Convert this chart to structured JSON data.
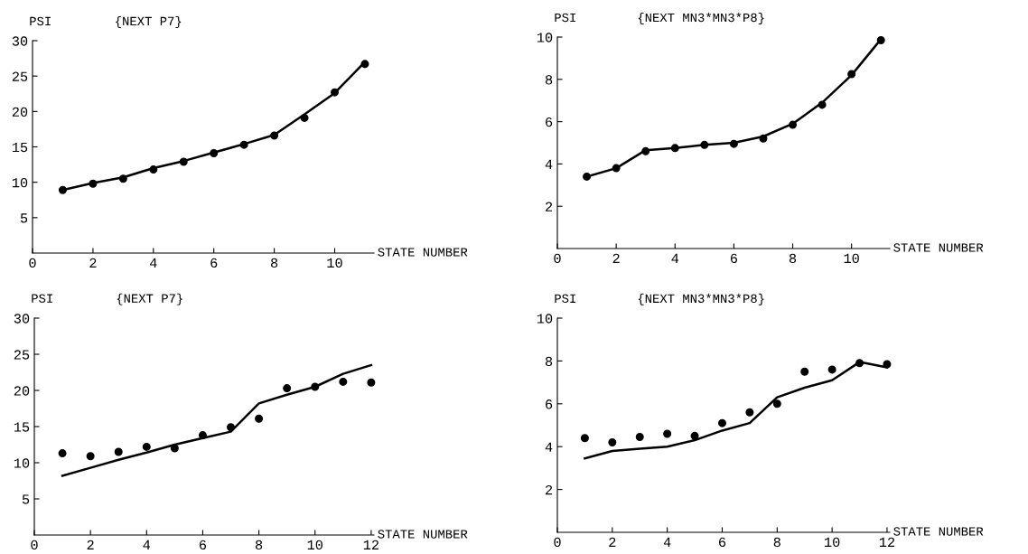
{
  "chart_data": [
    {
      "type": "scatter",
      "title": "{NEXT P7}",
      "ylabel": "PSI",
      "xlabel": "STATE NUMBER",
      "xlim": [
        0,
        11.3
      ],
      "ylim": [
        0,
        30
      ],
      "xticks": [
        0,
        2,
        4,
        6,
        8,
        10
      ],
      "yticks": [
        5,
        10,
        15,
        20,
        25,
        30
      ],
      "marker": "circle",
      "grid": false,
      "legend": false,
      "x": [
        1,
        2,
        3,
        4,
        5,
        6,
        7,
        8,
        9,
        10,
        11
      ],
      "series": [
        {
          "color": "#000000",
          "values": [
            8.9,
            9.8,
            10.5,
            11.8,
            12.9,
            14.1,
            15.3,
            16.6,
            19.1,
            22.7,
            26.7
          ]
        },
        {
          "type": "line",
          "color": "#000000",
          "marker": "none",
          "values": [
            8.9,
            9.9,
            10.7,
            12.0,
            13.0,
            14.2,
            15.4,
            16.7,
            19.6,
            22.6,
            27.0
          ]
        }
      ]
    },
    {
      "type": "scatter",
      "title": "{NEXT MN3*MN3*P8}",
      "ylabel": "PSI",
      "xlabel": "STATE NUMBER",
      "xlim": [
        0,
        11.3
      ],
      "ylim": [
        0,
        10
      ],
      "xticks": [
        0,
        2,
        4,
        6,
        8,
        10
      ],
      "yticks": [
        2,
        4,
        6,
        8,
        10
      ],
      "marker": "circle",
      "grid": false,
      "legend": false,
      "x": [
        1,
        2,
        3,
        4,
        5,
        6,
        7,
        8,
        9,
        10,
        11
      ],
      "series": [
        {
          "color": "#000000",
          "values": [
            3.4,
            3.8,
            4.6,
            4.75,
            4.9,
            4.95,
            5.2,
            5.85,
            6.8,
            8.25,
            9.85
          ]
        },
        {
          "type": "line",
          "color": "#000000",
          "marker": "none",
          "values": [
            3.4,
            3.8,
            4.65,
            4.75,
            4.9,
            5.0,
            5.3,
            5.9,
            6.9,
            8.2,
            9.9
          ]
        }
      ]
    },
    {
      "type": "scatter",
      "title": "{NEXT P7}",
      "ylabel": "PSI",
      "xlabel": "STATE NUMBER",
      "xlim": [
        0,
        12.1
      ],
      "ylim": [
        0,
        30
      ],
      "xticks": [
        0,
        2,
        4,
        6,
        8,
        10,
        12
      ],
      "yticks": [
        5,
        10,
        15,
        20,
        25,
        30
      ],
      "marker": "circle",
      "grid": false,
      "legend": false,
      "x": [
        1,
        2,
        3,
        4,
        5,
        6,
        7,
        8,
        9,
        10,
        11,
        12
      ],
      "series": [
        {
          "color": "#000000",
          "values": [
            11.3,
            10.9,
            11.5,
            12.2,
            12.0,
            13.8,
            14.9,
            16.1,
            20.3,
            20.5,
            21.2,
            21.1
          ]
        },
        {
          "type": "line",
          "color": "#000000",
          "marker": "none",
          "values": [
            8.2,
            9.3,
            10.4,
            11.4,
            12.5,
            13.4,
            14.3,
            18.2,
            19.4,
            20.5,
            22.3,
            23.5
          ]
        }
      ]
    },
    {
      "type": "scatter",
      "title": "{NEXT MN3*MN3*P8}",
      "ylabel": "PSI",
      "xlabel": "STATE NUMBER",
      "xlim": [
        0,
        12.1
      ],
      "ylim": [
        0,
        10
      ],
      "xticks": [
        0,
        2,
        4,
        6,
        8,
        10,
        12
      ],
      "yticks": [
        2,
        4,
        6,
        8,
        10
      ],
      "marker": "circle",
      "grid": false,
      "legend": false,
      "x": [
        1,
        2,
        3,
        4,
        5,
        6,
        7,
        8,
        9,
        10,
        11,
        12
      ],
      "series": [
        {
          "color": "#000000",
          "values": [
            4.4,
            4.2,
            4.45,
            4.6,
            4.5,
            5.1,
            5.6,
            6.0,
            7.5,
            7.6,
            7.9,
            7.85
          ]
        },
        {
          "type": "line",
          "color": "#000000",
          "marker": "none",
          "values": [
            3.45,
            3.8,
            3.9,
            4.0,
            4.3,
            4.75,
            5.1,
            6.3,
            6.75,
            7.1,
            7.95,
            7.7
          ]
        }
      ]
    }
  ]
}
